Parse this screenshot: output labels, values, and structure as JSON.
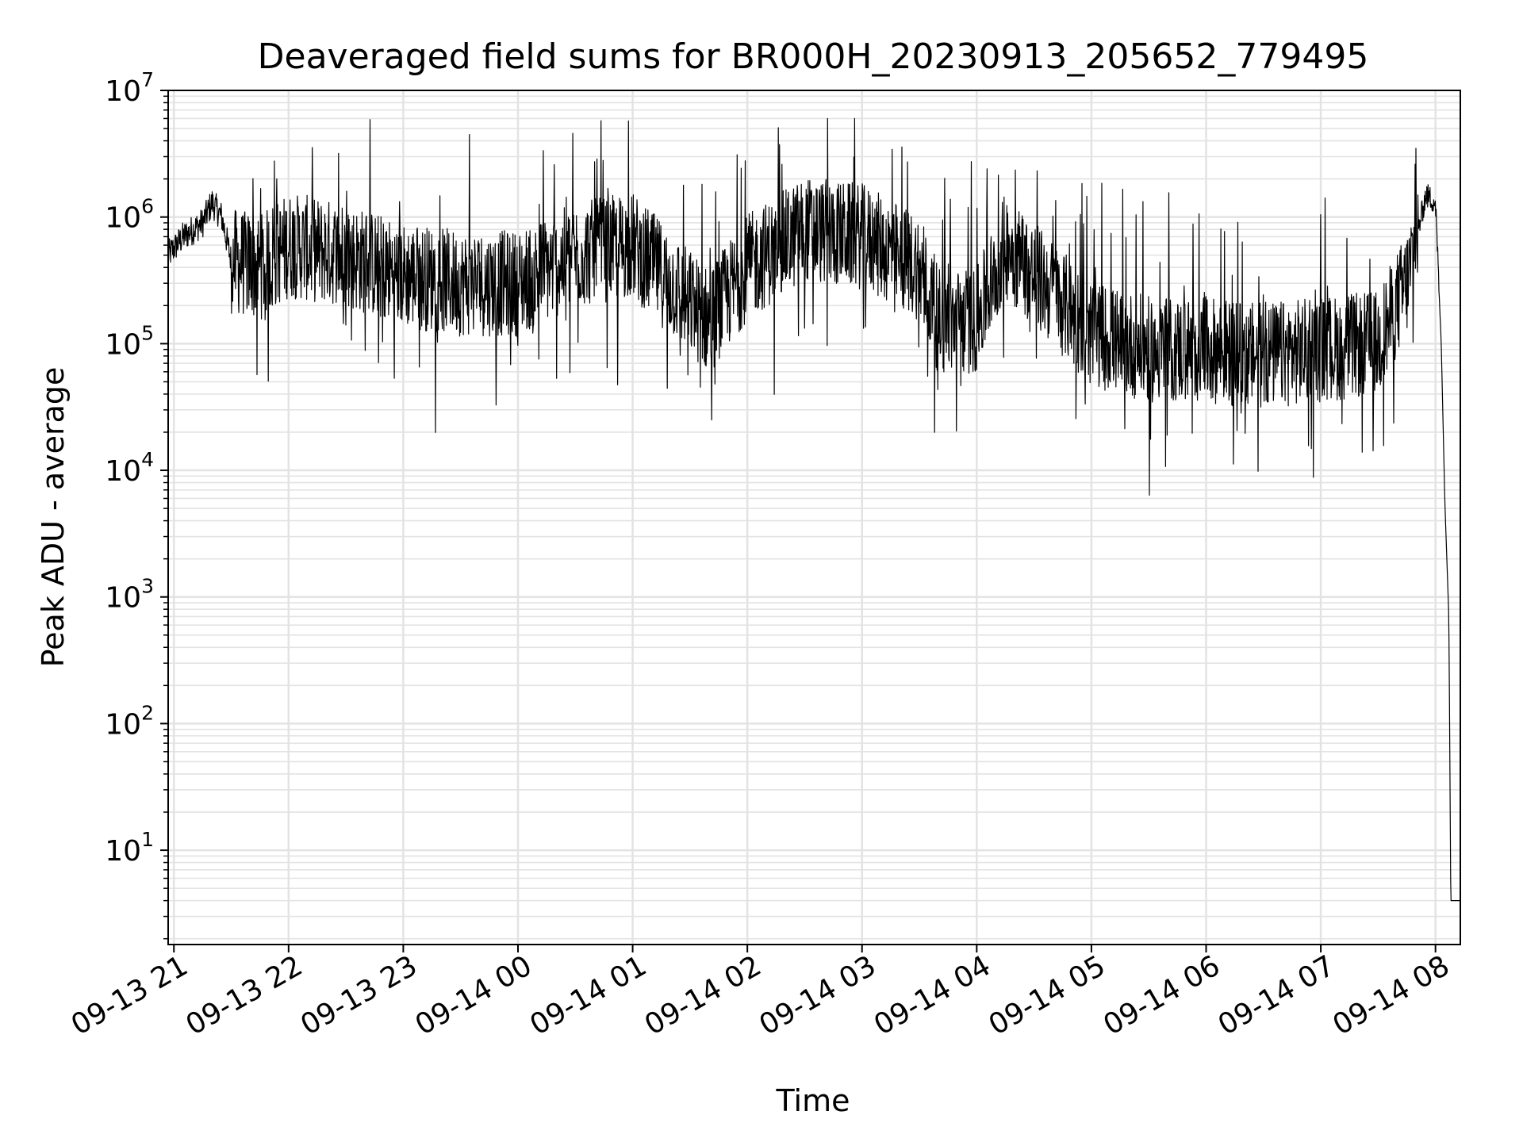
{
  "chart_data": {
    "type": "line",
    "title": "Deaveraged field sums for BR000H_20230913_205652_779495",
    "xlabel": "Time",
    "ylabel": "Peak ADU - average",
    "y_scale": "log",
    "ylim": [
      1.8,
      10000000
    ],
    "xlim": [
      "2023-09-13 20:57",
      "2023-09-14 08:13"
    ],
    "grid": true,
    "line_color": "#000000",
    "x_ticks": [
      "09-13 21",
      "09-13 22",
      "09-13 23",
      "09-14 00",
      "09-14 01",
      "09-14 02",
      "09-14 03",
      "09-14 04",
      "09-14 05",
      "09-14 06",
      "09-14 07",
      "09-14 08"
    ],
    "y_ticks": [
      {
        "base": "10",
        "exp": "1",
        "value": 10
      },
      {
        "base": "10",
        "exp": "2",
        "value": 100
      },
      {
        "base": "10",
        "exp": "3",
        "value": 1000
      },
      {
        "base": "10",
        "exp": "4",
        "value": 10000
      },
      {
        "base": "10",
        "exp": "5",
        "value": 100000
      },
      {
        "base": "10",
        "exp": "6",
        "value": 1000000
      },
      {
        "base": "10",
        "exp": "7",
        "value": 10000000
      }
    ],
    "series": [
      {
        "values": [
          {
            "t": "2023-09-13 20:57",
            "y": 500000
          },
          {
            "t": "2023-09-13 21:05",
            "y": 700000
          },
          {
            "t": "2023-09-13 21:15",
            "y": 900000
          },
          {
            "t": "2023-09-13 21:20",
            "y": 1300000
          },
          {
            "t": "2023-09-13 21:25",
            "y": 1000000
          },
          {
            "t": "2023-09-13 21:30",
            "y": 450000
          },
          {
            "t": "2023-09-13 21:45",
            "y": 400000
          },
          {
            "t": "2023-09-13 22:00",
            "y": 600000
          },
          {
            "t": "2023-09-13 22:30",
            "y": 500000
          },
          {
            "t": "2023-09-13 23:00",
            "y": 350000
          },
          {
            "t": "2023-09-13 23:30",
            "y": 300000
          },
          {
            "t": "2023-09-14 00:00",
            "y": 300000
          },
          {
            "t": "2023-09-14 00:30",
            "y": 500000
          },
          {
            "t": "2023-09-14 01:00",
            "y": 600000
          },
          {
            "t": "2023-09-14 01:40",
            "y": 150000
          },
          {
            "t": "2023-09-14 02:00",
            "y": 400000
          },
          {
            "t": "2023-09-14 02:30",
            "y": 800000
          },
          {
            "t": "2023-09-14 03:00",
            "y": 700000
          },
          {
            "t": "2023-09-14 03:30",
            "y": 400000
          },
          {
            "t": "2023-09-14 03:40",
            "y": 150000
          },
          {
            "t": "2023-09-14 04:00",
            "y": 150000
          },
          {
            "t": "2023-09-14 04:15",
            "y": 600000
          },
          {
            "t": "2023-09-14 04:40",
            "y": 250000
          },
          {
            "t": "2023-09-14 05:00",
            "y": 120000
          },
          {
            "t": "2023-09-14 05:30",
            "y": 90000
          },
          {
            "t": "2023-09-14 06:00",
            "y": 90000
          },
          {
            "t": "2023-09-14 06:30",
            "y": 80000
          },
          {
            "t": "2023-09-14 07:00",
            "y": 90000
          },
          {
            "t": "2023-09-14 07:30",
            "y": 100000
          },
          {
            "t": "2023-09-14 07:45",
            "y": 300000
          },
          {
            "t": "2023-09-14 07:55",
            "y": 1500000
          },
          {
            "t": "2023-09-14 08:00",
            "y": 1300000
          },
          {
            "t": "2023-09-14 08:03",
            "y": 100000
          },
          {
            "t": "2023-09-14 08:05",
            "y": 5000
          },
          {
            "t": "2023-09-14 08:07",
            "y": 700
          },
          {
            "t": "2023-09-14 08:08",
            "y": 4
          },
          {
            "t": "2023-09-14 08:13",
            "y": 4
          }
        ]
      }
    ]
  }
}
